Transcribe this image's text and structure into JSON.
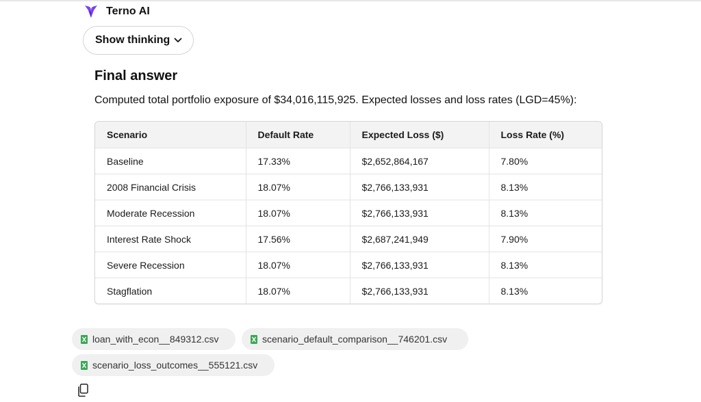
{
  "app": {
    "name": "Terno AI",
    "logo_icon": "terno-logo-icon",
    "logo_color": "#7b3ff2"
  },
  "thinking_toggle": {
    "label": "Show thinking",
    "icon": "chevron-down-icon"
  },
  "answer": {
    "title": "Final answer",
    "summary": "Computed total portfolio exposure of $34,016,115,925. Expected losses and loss rates (LGD=45%):"
  },
  "table": {
    "headers": [
      "Scenario",
      "Default Rate",
      "Expected Loss ($)",
      "Loss Rate (%)"
    ],
    "rows": [
      [
        "Baseline",
        "17.33%",
        "$2,652,864,167",
        "7.80%"
      ],
      [
        "2008 Financial Crisis",
        "18.07%",
        "$2,766,133,931",
        "8.13%"
      ],
      [
        "Moderate Recession",
        "18.07%",
        "$2,766,133,931",
        "8.13%"
      ],
      [
        "Interest Rate Shock",
        "17.56%",
        "$2,687,241,949",
        "7.90%"
      ],
      [
        "Severe Recession",
        "18.07%",
        "$2,766,133,931",
        "8.13%"
      ],
      [
        "Stagflation",
        "18.07%",
        "$2,766,133,931",
        "8.13%"
      ]
    ]
  },
  "files": [
    {
      "name": "loan_with_econ__849312.csv",
      "icon": "excel-file-icon"
    },
    {
      "name": "scenario_default_comparison__746201.csv",
      "icon": "excel-file-icon"
    },
    {
      "name": "scenario_loss_outcomes__555121.csv",
      "icon": "excel-file-icon"
    }
  ],
  "actions": {
    "copy_icon": "copy-icon"
  },
  "colors": {
    "file_icon": "#3aa757",
    "chip_bg": "#f0f0f0",
    "header_bg": "#f3f3f4"
  }
}
